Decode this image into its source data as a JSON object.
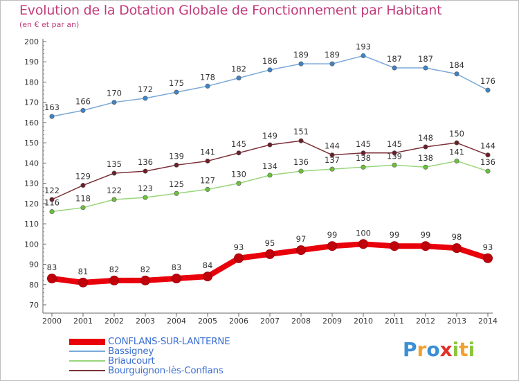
{
  "chart_data": {
    "type": "line",
    "title": "Evolution de la Dotation Globale de Fonctionnement par Habitant",
    "subtitle": "(en € et par an)",
    "xlabel": "",
    "ylabel": "",
    "x": [
      "2000",
      "2001",
      "2002",
      "2003",
      "2004",
      "2005",
      "2006",
      "2007",
      "2008",
      "2009",
      "2010",
      "2011",
      "2012",
      "2013",
      "2014"
    ],
    "ylim": [
      70,
      200
    ],
    "yticks": [
      70,
      80,
      90,
      100,
      110,
      120,
      130,
      140,
      150,
      160,
      170,
      180,
      190,
      200
    ],
    "grid": false,
    "legend_position": "bottom-left",
    "series": [
      {
        "name": "CONFLANS-SUR-LANTERNE",
        "color": "#e8000b",
        "marker_color": "#c0000a",
        "values": [
          83,
          81,
          82,
          82,
          83,
          84,
          93,
          95,
          97,
          99,
          100,
          99,
          99,
          98,
          93
        ]
      },
      {
        "name": "Bassigney",
        "color": "#7aa8d8",
        "marker_color": "#3f84c6",
        "values": [
          163,
          166,
          170,
          172,
          175,
          178,
          182,
          186,
          189,
          189,
          193,
          187,
          187,
          184,
          176
        ]
      },
      {
        "name": "Briaucourt",
        "color": "#98d57a",
        "marker_color": "#6cc13b",
        "values": [
          116,
          118,
          122,
          123,
          125,
          127,
          130,
          134,
          136,
          137,
          138,
          139,
          138,
          141,
          136
        ]
      },
      {
        "name": "Bourguignon-lès-Conflans",
        "color": "#7b3038",
        "marker_color": "#6b1f28",
        "values": [
          122,
          129,
          135,
          136,
          139,
          141,
          145,
          149,
          151,
          144,
          145,
          145,
          148,
          150,
          144
        ]
      }
    ]
  },
  "brand": {
    "letters": [
      "P",
      "r",
      "o",
      "x",
      "i",
      "t",
      "i"
    ],
    "colors": [
      "#3a8fd6",
      "#f2a02e",
      "#3a8fd6",
      "#e2312a",
      "#8cc63f",
      "#f2a02e",
      "#8cc63f"
    ]
  }
}
